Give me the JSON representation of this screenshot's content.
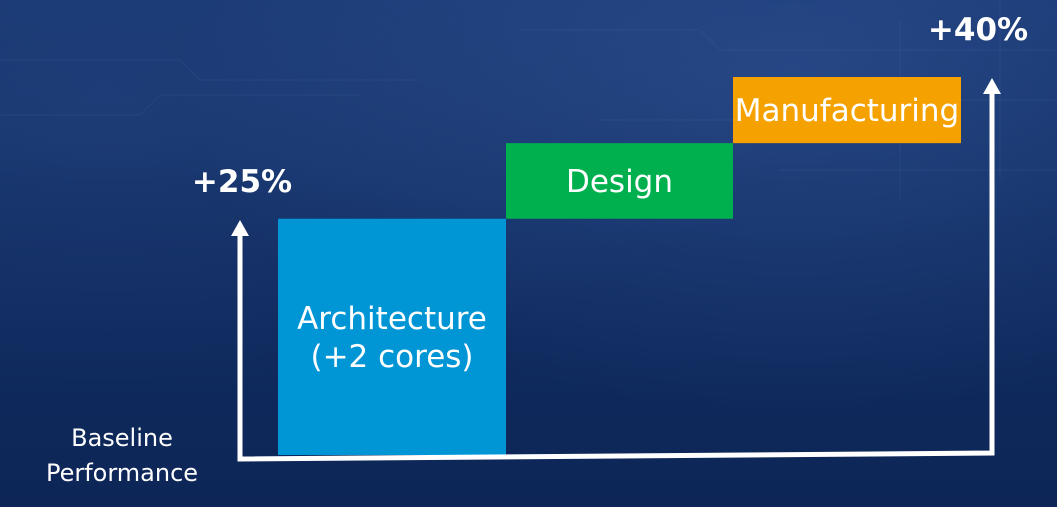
{
  "colors": {
    "background": "#0f2a5e",
    "architecture": "#0096d6",
    "design": "#00b04f",
    "manufacturing": "#f5a100",
    "arrow": "#ffffff",
    "text": "#ffffff"
  },
  "chart_data": {
    "type": "bar",
    "subtype": "stacked-waterfall",
    "categories": [
      "Architecture (+2 cores)",
      "Design",
      "Manufacturing"
    ],
    "segments": [
      {
        "label_lines": [
          "Architecture",
          "(+2 cores)"
        ],
        "start": 0,
        "end": 25,
        "color": "#0096d6"
      },
      {
        "label_lines": [
          "Design"
        ],
        "start": 25,
        "end": 33,
        "color": "#00b04f"
      },
      {
        "label_lines": [
          "Manufacturing"
        ],
        "start": 33,
        "end": 40,
        "color": "#f5a100"
      }
    ],
    "baseline_label_lines": [
      "Baseline",
      "Performance"
    ],
    "markers": [
      {
        "label": "+25%",
        "value": 25
      },
      {
        "label": "+40%",
        "value": 40
      }
    ],
    "ylim": [
      0,
      40
    ],
    "grid": false,
    "legend": "none",
    "title": "",
    "xlabel": "",
    "ylabel": ""
  }
}
